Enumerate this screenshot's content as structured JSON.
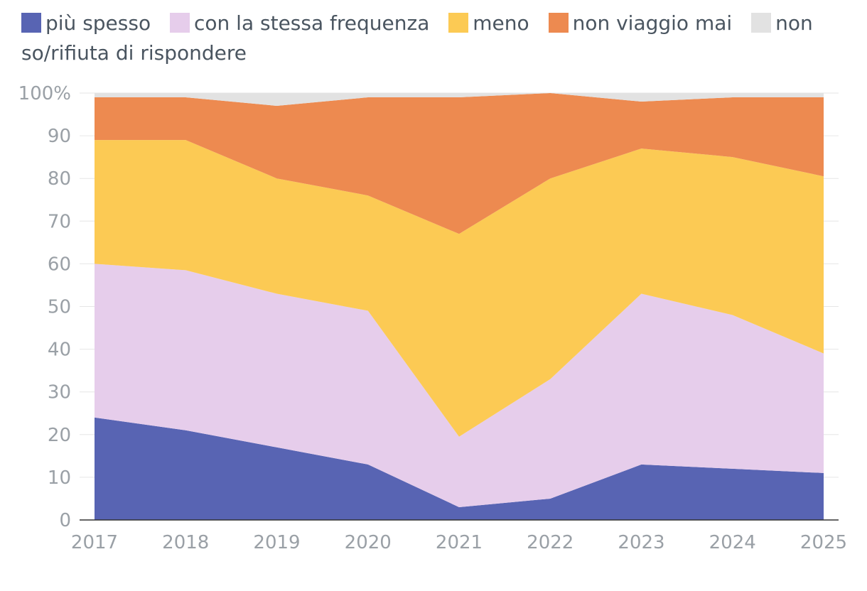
{
  "chart_data": {
    "type": "area",
    "stacked": true,
    "x": [
      "2017",
      "2018",
      "2019",
      "2020",
      "2021",
      "2022",
      "2023",
      "2024",
      "2025"
    ],
    "series": [
      {
        "name": "più spesso",
        "color": "#5864b3",
        "values": [
          24,
          21,
          17,
          13,
          3,
          5,
          13,
          12,
          11
        ]
      },
      {
        "name": "con la stessa frequenza",
        "color": "#e6cdeb",
        "values": [
          36,
          37.5,
          36,
          36,
          16.5,
          28,
          40,
          36,
          28
        ]
      },
      {
        "name": "meno",
        "color": "#fcca54",
        "values": [
          29,
          30.5,
          27,
          27,
          47.5,
          47,
          34,
          37,
          41.5
        ]
      },
      {
        "name": "non viaggio mai",
        "color": "#ed8a50",
        "values": [
          10,
          10,
          17,
          23,
          32,
          20,
          11,
          14,
          18.5
        ]
      },
      {
        "name": "non so/rifiuta di rispondere",
        "color": "#e2e2e2",
        "values": [
          1,
          1,
          3,
          1,
          1,
          0,
          2,
          1,
          1
        ]
      }
    ],
    "y_ticks": [
      "0",
      "10",
      "20",
      "30",
      "40",
      "50",
      "60",
      "70",
      "80",
      "90",
      "100%"
    ],
    "ylim": [
      0,
      100
    ],
    "legend": "top",
    "grid": true
  }
}
